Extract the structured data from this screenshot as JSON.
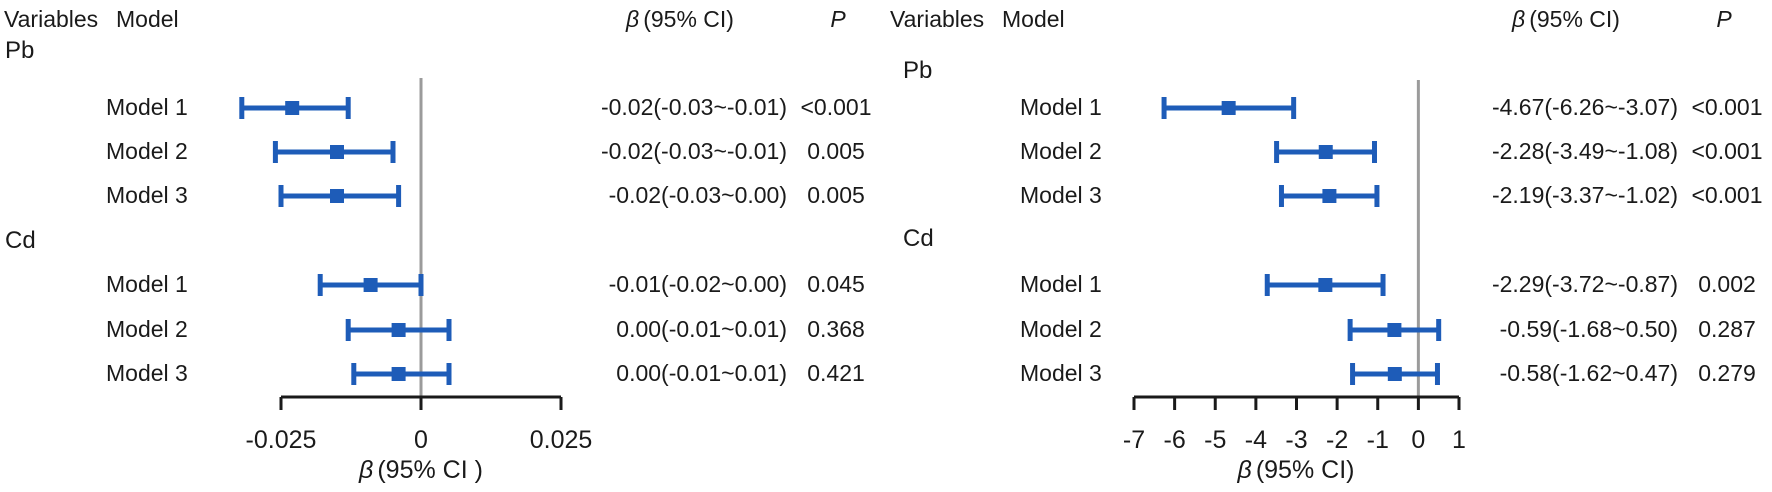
{
  "colors": {
    "bar": "#1E5CB8",
    "marker": "#1E5CB8",
    "reference_line": "#9B9B9B",
    "axis": "#1A1A1A",
    "text": "#1A1A1A"
  },
  "chart_data": [
    {
      "type": "forest",
      "panel": "left",
      "header": {
        "variables": "Variables",
        "model": "Model",
        "beta": "β",
        "ci": "(95% CI)",
        "p": "P"
      },
      "axis": {
        "min": -0.025,
        "max": 0.025,
        "tick_values": [
          -0.025,
          0,
          0.025
        ],
        "tick_labels": [
          "-0.025",
          "0",
          "0.025"
        ],
        "zero_reference_line": true,
        "title_beta": "β",
        "title_rest": "(95% CI )"
      },
      "groups": [
        {
          "name": "Pb",
          "rows": [
            {
              "model": "Model 1",
              "est": -0.023,
              "lo": -0.032,
              "hi": -0.013,
              "ci_text": "-0.02(-0.03~-0.01)",
              "p_text": "<0.001"
            },
            {
              "model": "Model 2",
              "est": -0.015,
              "lo": -0.026,
              "hi": -0.005,
              "ci_text": "-0.02(-0.03~-0.01)",
              "p_text": "0.005"
            },
            {
              "model": "Model 3",
              "est": -0.015,
              "lo": -0.025,
              "hi": -0.004,
              "ci_text": "-0.02(-0.03~0.00)",
              "p_text": "0.005"
            }
          ]
        },
        {
          "name": "Cd",
          "rows": [
            {
              "model": "Model 1",
              "est": -0.009,
              "lo": -0.018,
              "hi": 0.0,
              "ci_text": "-0.01(-0.02~0.00)",
              "p_text": "0.045"
            },
            {
              "model": "Model 2",
              "est": -0.004,
              "lo": -0.013,
              "hi": 0.005,
              "ci_text": "0.00(-0.01~0.01)",
              "p_text": "0.368"
            },
            {
              "model": "Model 3",
              "est": -0.004,
              "lo": -0.012,
              "hi": 0.005,
              "ci_text": "0.00(-0.01~0.01)",
              "p_text": "0.421"
            }
          ]
        }
      ]
    },
    {
      "type": "forest",
      "panel": "right",
      "header": {
        "variables": "Variables",
        "model": "Model",
        "beta": "β",
        "ci": "(95% CI)",
        "p": "P"
      },
      "axis": {
        "min": -7,
        "max": 1,
        "tick_values": [
          -7,
          -6,
          -5,
          -4,
          -3,
          -2,
          -1,
          0,
          1
        ],
        "tick_labels": [
          "-7",
          "-6",
          "-5",
          "-4",
          "-3",
          "-2",
          "-1",
          "0",
          "1"
        ],
        "zero_reference_line": true,
        "title_beta": "β",
        "title_rest": "(95% CI)"
      },
      "groups": [
        {
          "name": "Pb",
          "rows": [
            {
              "model": "Model 1",
              "est": -4.67,
              "lo": -6.26,
              "hi": -3.07,
              "ci_text": "-4.67(-6.26~-3.07)",
              "p_text": "<0.001"
            },
            {
              "model": "Model 2",
              "est": -2.28,
              "lo": -3.49,
              "hi": -1.08,
              "ci_text": "-2.28(-3.49~-1.08)",
              "p_text": "<0.001"
            },
            {
              "model": "Model 3",
              "est": -2.19,
              "lo": -3.37,
              "hi": -1.02,
              "ci_text": "-2.19(-3.37~-1.02)",
              "p_text": "<0.001"
            }
          ]
        },
        {
          "name": "Cd",
          "rows": [
            {
              "model": "Model 1",
              "est": -2.29,
              "lo": -3.72,
              "hi": -0.87,
              "ci_text": "-2.29(-3.72~-0.87)",
              "p_text": "0.002"
            },
            {
              "model": "Model 2",
              "est": -0.59,
              "lo": -1.68,
              "hi": 0.5,
              "ci_text": "-0.59(-1.68~0.50)",
              "p_text": "0.287"
            },
            {
              "model": "Model 3",
              "est": -0.58,
              "lo": -1.62,
              "hi": 0.47,
              "ci_text": "-0.58(-1.62~0.47)",
              "p_text": "0.279"
            }
          ]
        }
      ]
    }
  ]
}
